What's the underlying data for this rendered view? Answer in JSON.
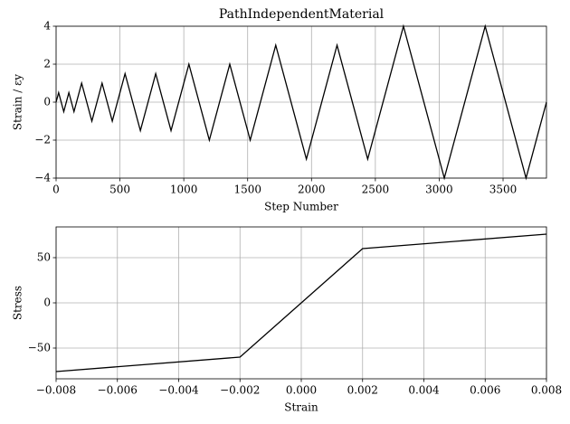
{
  "chart_data": [
    {
      "type": "line",
      "title": "PathIndependentMaterial",
      "x_label": "Step Number",
      "y_label": "Strain / εy",
      "x": [
        0,
        20,
        60,
        100,
        140,
        200,
        280,
        360,
        440,
        540,
        660,
        780,
        900,
        1040,
        1200,
        1360,
        1520,
        1720,
        1960,
        2200,
        2440,
        2720,
        3040,
        3360,
        3680,
        3840
      ],
      "series": [
        {
          "color": "#000000",
          "values": [
            0,
            0.5,
            -0.5,
            0.5,
            -0.5,
            1,
            -1,
            1,
            -1,
            1.5,
            -1.5,
            1.5,
            -1.5,
            2,
            -2,
            2,
            -2,
            3,
            -3,
            3,
            -3,
            4,
            -4,
            4,
            -4,
            0
          ]
        }
      ],
      "xlim": [
        0,
        3840
      ],
      "ylim": [
        -4,
        4
      ],
      "xticks": [
        0,
        500,
        1000,
        1500,
        2000,
        2500,
        3000,
        3500
      ],
      "yticks": [
        {
          "value": -4,
          "label": "−4"
        },
        {
          "value": -2,
          "label": "−2"
        },
        0,
        2,
        4
      ],
      "grid": true
    },
    {
      "type": "line",
      "x_label": "Strain",
      "y_label": "Stress",
      "x": [
        -0.008,
        -0.002,
        0.002,
        0.008
      ],
      "series": [
        {
          "color": "#000000",
          "values": [
            -76,
            -60,
            60,
            76
          ]
        }
      ],
      "xlim": [
        -0.008,
        0.008
      ],
      "ylim": [
        -84,
        84
      ],
      "xticks": [
        {
          "value": -0.008,
          "label": "−0.008"
        },
        {
          "value": -0.006,
          "label": "−0.006"
        },
        {
          "value": -0.004,
          "label": "−0.004"
        },
        {
          "value": -0.002,
          "label": "−0.002"
        },
        {
          "value": 0,
          "label": "0.000"
        },
        {
          "value": 0.002,
          "label": "0.002"
        },
        {
          "value": 0.004,
          "label": "0.004"
        },
        {
          "value": 0.006,
          "label": "0.006"
        },
        {
          "value": 0.008,
          "label": "0.008"
        }
      ],
      "yticks": [
        {
          "value": -50,
          "label": "−50"
        },
        0,
        50
      ],
      "grid": true
    }
  ]
}
